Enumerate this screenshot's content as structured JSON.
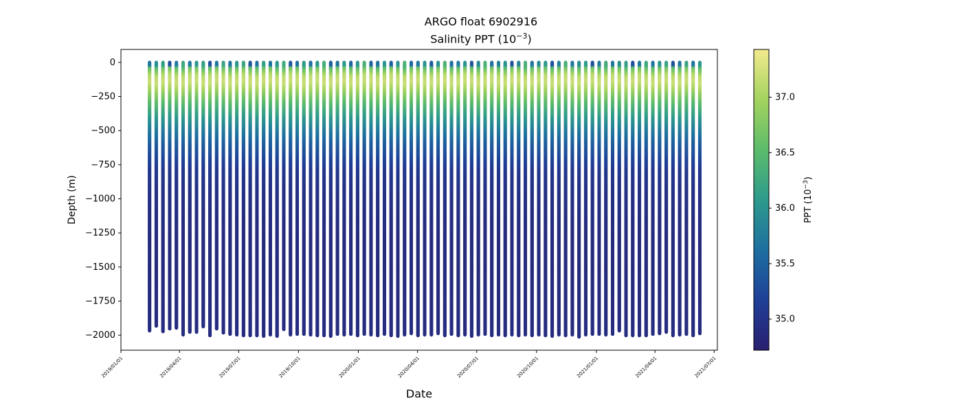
{
  "chart_data": {
    "type": "scatter",
    "title": "ARGO float 6902916",
    "subtitle": "Salinity PPT (10",
    "subtitle_exp": "−3",
    "subtitle_end": ")",
    "xlabel": "Date",
    "ylabel": "Depth (m)",
    "colorbar_label": "PPT (10",
    "colorbar_label_exp": "−3",
    "colorbar_label_end": ")",
    "colormap": [
      "#2a1f6f",
      "#1f3f97",
      "#1e6fa0",
      "#2d9a8c",
      "#5cbc6b",
      "#a4d35f",
      "#f2ea8e"
    ],
    "colorbar_range": [
      34.72,
      37.43
    ],
    "colorbar_ticks": [
      35.0,
      35.5,
      36.0,
      36.5,
      37.0
    ],
    "colorbar_tick_labels": [
      "35.0",
      "35.5",
      "36.0",
      "36.5",
      "37.0"
    ],
    "xlim": [
      "2019-01-01",
      "2021-07-06"
    ],
    "x_ticks": [
      "2019-01-01",
      "2019-04-01",
      "2019-07-01",
      "2019-10-01",
      "2020-01-01",
      "2020-04-01",
      "2020-07-01",
      "2020-10-01",
      "2021-01-01",
      "2021-04-01",
      "2021-07-01"
    ],
    "x_tick_labels": [
      "2019/01/01",
      "2019/04/01",
      "2019/07/01",
      "2019/10/01",
      "2020/01/01",
      "2020/04/01",
      "2020/07/01",
      "2020/10/01",
      "2021/01/01",
      "2021/04/01",
      "2021/07/01"
    ],
    "ylim": [
      -2110,
      95
    ],
    "y_ticks": [
      0,
      -250,
      -500,
      -750,
      -1000,
      -1250,
      -1500,
      -1750,
      -2000
    ],
    "y_tick_labels": [
      "0",
      "−250",
      "−500",
      "−750",
      "−1000",
      "−1250",
      "−1500",
      "−1750",
      "−2000"
    ],
    "profiles": {
      "first_date": "2019-02-14",
      "last_date": "2021-06-09",
      "count": 83,
      "surface_depth": 0,
      "deep_depths_m": [
        -1965,
        -1930,
        -1970,
        -1950,
        -1945,
        -1995,
        -1975,
        -1975,
        -1935,
        -2000,
        -1950,
        -1980,
        -1990,
        -1995,
        -2000,
        -2000,
        -2000,
        -2005,
        -1995,
        -2005,
        -1955,
        -1995,
        -1990,
        -1990,
        -1995,
        -2000,
        -2000,
        -2005,
        -1990,
        -1995,
        -1990,
        -2000,
        -1990,
        -1995,
        -2000,
        -1990,
        -2000,
        -2005,
        -1995,
        -1985,
        -2000,
        -1995,
        -1995,
        -1985,
        -2000,
        -1990,
        -2000,
        -1995,
        -2005,
        -1995,
        -1990,
        -2000,
        -1995,
        -2000,
        -1995,
        -2000,
        -1995,
        -2000,
        -1995,
        -2000,
        -2005,
        -1995,
        -2000,
        -1995,
        -2010,
        -1995,
        -1990,
        -1990,
        -1995,
        -1990,
        -1965,
        -2000,
        -2000,
        -2000,
        -2000,
        -1990,
        -1985,
        -1975,
        -2000,
        -1995,
        -1990,
        -2000,
        -1985
      ],
      "salinity_by_depth": {
        "depths_m": [
          0,
          -50,
          -100,
          -150,
          -200,
          -250,
          -300,
          -400,
          -500,
          -600,
          -700,
          -800,
          -1000,
          -1200,
          -1500,
          -2000
        ],
        "ppt": [
          36.0,
          36.6,
          37.1,
          37.2,
          37.0,
          36.75,
          36.5,
          36.1,
          35.75,
          35.45,
          35.25,
          35.05,
          34.95,
          34.9,
          34.88,
          34.9
        ]
      }
    }
  }
}
